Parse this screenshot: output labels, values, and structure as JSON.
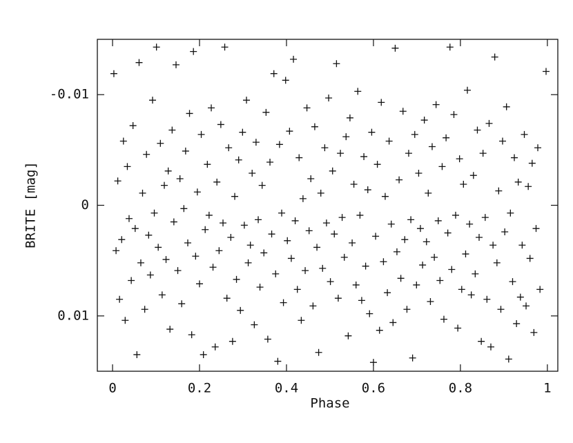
{
  "chart_data": {
    "type": "scatter",
    "xlabel": "Phase",
    "ylabel": "BRITE [mag]",
    "xlim": [
      -0.035,
      1.024
    ],
    "xticks": [
      0,
      0.2,
      0.4,
      0.6,
      0.8,
      1
    ],
    "ylim": [
      0.015,
      -0.015
    ],
    "yticks": [
      -0.01,
      0,
      0.01
    ],
    "color": "#111111",
    "marker": "plus",
    "grid": false,
    "x": [
      0.003,
      0.008,
      0.012,
      0.016,
      0.021,
      0.025,
      0.029,
      0.034,
      0.038,
      0.043,
      0.047,
      0.052,
      0.056,
      0.061,
      0.065,
      0.069,
      0.074,
      0.078,
      0.083,
      0.087,
      0.092,
      0.096,
      0.101,
      0.105,
      0.11,
      0.114,
      0.119,
      0.123,
      0.128,
      0.132,
      0.137,
      0.141,
      0.146,
      0.15,
      0.155,
      0.159,
      0.164,
      0.168,
      0.173,
      0.177,
      0.182,
      0.186,
      0.191,
      0.195,
      0.2,
      0.204,
      0.209,
      0.213,
      0.218,
      0.222,
      0.227,
      0.231,
      0.236,
      0.24,
      0.245,
      0.249,
      0.254,
      0.258,
      0.263,
      0.267,
      0.272,
      0.276,
      0.281,
      0.285,
      0.29,
      0.294,
      0.299,
      0.303,
      0.308,
      0.312,
      0.317,
      0.321,
      0.326,
      0.33,
      0.335,
      0.339,
      0.344,
      0.348,
      0.353,
      0.357,
      0.362,
      0.366,
      0.371,
      0.375,
      0.38,
      0.384,
      0.389,
      0.393,
      0.398,
      0.402,
      0.407,
      0.411,
      0.416,
      0.42,
      0.425,
      0.429,
      0.434,
      0.438,
      0.443,
      0.447,
      0.452,
      0.456,
      0.461,
      0.465,
      0.47,
      0.474,
      0.479,
      0.483,
      0.488,
      0.492,
      0.497,
      0.501,
      0.506,
      0.51,
      0.515,
      0.519,
      0.524,
      0.528,
      0.533,
      0.537,
      0.542,
      0.546,
      0.551,
      0.555,
      0.56,
      0.564,
      0.569,
      0.573,
      0.578,
      0.582,
      0.587,
      0.591,
      0.596,
      0.6,
      0.605,
      0.609,
      0.614,
      0.618,
      0.623,
      0.627,
      0.632,
      0.636,
      0.641,
      0.645,
      0.65,
      0.654,
      0.659,
      0.663,
      0.668,
      0.672,
      0.677,
      0.681,
      0.686,
      0.69,
      0.695,
      0.699,
      0.704,
      0.708,
      0.713,
      0.717,
      0.722,
      0.726,
      0.731,
      0.735,
      0.74,
      0.744,
      0.749,
      0.753,
      0.758,
      0.762,
      0.767,
      0.771,
      0.776,
      0.78,
      0.785,
      0.789,
      0.794,
      0.798,
      0.803,
      0.807,
      0.812,
      0.816,
      0.821,
      0.825,
      0.83,
      0.834,
      0.839,
      0.843,
      0.848,
      0.852,
      0.857,
      0.861,
      0.866,
      0.87,
      0.875,
      0.879,
      0.884,
      0.888,
      0.893,
      0.897,
      0.902,
      0.906,
      0.911,
      0.915,
      0.92,
      0.924,
      0.929,
      0.933,
      0.938,
      0.942,
      0.947,
      0.951,
      0.956,
      0.96,
      0.965,
      0.969,
      0.974,
      0.978,
      0.983,
      0.997
    ],
    "y": [
      -0.0119,
      0.0041,
      -0.0022,
      0.0085,
      0.0031,
      -0.0058,
      0.0104,
      -0.0035,
      0.0012,
      0.0068,
      -0.0072,
      0.0021,
      0.0135,
      -0.0129,
      0.0052,
      -0.0011,
      0.0094,
      -0.0046,
      0.0027,
      0.0063,
      -0.0095,
      0.0007,
      -0.0143,
      0.0038,
      -0.0056,
      0.0081,
      -0.0018,
      0.0049,
      -0.0031,
      0.0112,
      -0.0068,
      0.0015,
      -0.0127,
      0.0059,
      -0.0024,
      0.0089,
      0.0003,
      -0.0049,
      0.0034,
      -0.0083,
      0.0117,
      -0.0139,
      0.0046,
      -0.0012,
      0.0071,
      -0.0064,
      0.0135,
      0.0022,
      -0.0037,
      0.0009,
      -0.0088,
      0.0056,
      0.0128,
      -0.0021,
      0.0041,
      -0.0073,
      0.0016,
      -0.0143,
      0.0084,
      -0.0052,
      0.0029,
      0.0123,
      -0.0008,
      0.0067,
      -0.0041,
      0.0095,
      -0.0066,
      0.0018,
      -0.0095,
      0.0052,
      0.0036,
      -0.0029,
      0.0108,
      -0.0057,
      0.0013,
      0.0074,
      -0.0018,
      0.0043,
      -0.0084,
      0.0121,
      -0.0039,
      0.0026,
      -0.0119,
      0.0062,
      0.0141,
      -0.0055,
      0.0007,
      0.0088,
      -0.0113,
      0.0032,
      -0.0067,
      0.0048,
      -0.0132,
      0.0014,
      0.0076,
      -0.0043,
      0.0104,
      -0.0006,
      0.0059,
      -0.0088,
      0.0023,
      -0.0024,
      0.0091,
      -0.0071,
      0.0038,
      0.0133,
      -0.0011,
      0.0057,
      -0.0052,
      0.0016,
      -0.0097,
      0.0069,
      -0.0031,
      0.0026,
      -0.0128,
      0.0084,
      -0.0047,
      0.0011,
      0.0047,
      -0.0062,
      0.0118,
      -0.0079,
      0.0034,
      -0.0019,
      0.0072,
      -0.0103,
      0.0009,
      0.0086,
      -0.0044,
      0.0055,
      -0.0014,
      0.0098,
      -0.0066,
      0.0142,
      0.0028,
      -0.0037,
      0.0113,
      -0.0093,
      0.0051,
      -0.0008,
      0.0079,
      -0.0058,
      0.0017,
      0.0106,
      -0.0142,
      0.0042,
      -0.0023,
      0.0066,
      -0.0085,
      0.0031,
      0.0094,
      -0.0047,
      0.0013,
      0.0138,
      -0.0064,
      0.0072,
      -0.0029,
      0.0021,
      0.0054,
      -0.0077,
      0.0033,
      -0.0011,
      0.0087,
      -0.0053,
      0.0047,
      -0.0091,
      0.0014,
      0.0068,
      -0.0035,
      0.0103,
      -0.0061,
      0.0025,
      -0.0143,
      0.0058,
      -0.0082,
      0.0009,
      0.0111,
      -0.0042,
      0.0076,
      -0.0019,
      0.0044,
      -0.0104,
      0.0017,
      0.0081,
      -0.0027,
      0.0062,
      -0.0068,
      0.0029,
      0.0123,
      -0.0047,
      0.0011,
      0.0085,
      -0.0074,
      0.0128,
      0.0036,
      -0.0134,
      0.0052,
      -0.0013,
      0.0094,
      -0.0058,
      0.0024,
      -0.0089,
      0.0139,
      0.0007,
      0.0069,
      -0.0043,
      0.0107,
      -0.0021,
      0.0083,
      0.0036,
      -0.0064,
      0.0091,
      -0.0017,
      0.0048,
      -0.0038,
      0.0115,
      0.0021,
      -0.0052,
      0.0076,
      -0.0121
    ]
  }
}
